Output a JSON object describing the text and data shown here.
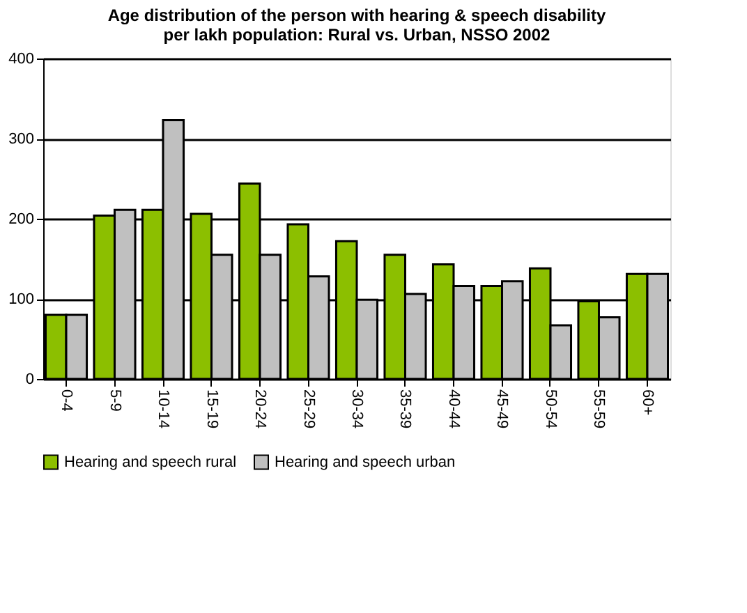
{
  "chart_data": {
    "type": "bar",
    "title": [
      "Age distribution of the person with hearing & speech disability",
      "per lakh population: Rural vs. Urban, NSSO 2002"
    ],
    "categories": [
      "0-4",
      "5-9",
      "10-14",
      "15-19",
      "20-24",
      "25-29",
      "30-34",
      "35-39",
      "40-44",
      "45-49",
      "50-54",
      "55-59",
      "60+"
    ],
    "series": [
      {
        "name": "Hearing and speech rural",
        "color": "#8cbf00",
        "values": [
          80,
          204,
          211,
          206,
          244,
          193,
          172,
          155,
          143,
          116,
          138,
          97,
          131
        ]
      },
      {
        "name": "Hearing and speech urban",
        "color": "#c0c0c0",
        "values": [
          80,
          211,
          323,
          155,
          155,
          128,
          99,
          106,
          116,
          122,
          67,
          77,
          131
        ]
      }
    ],
    "ylim": [
      0,
      400
    ],
    "yticks": [
      0,
      100,
      200,
      300,
      400
    ],
    "grid": "y",
    "legend": "bottom"
  }
}
